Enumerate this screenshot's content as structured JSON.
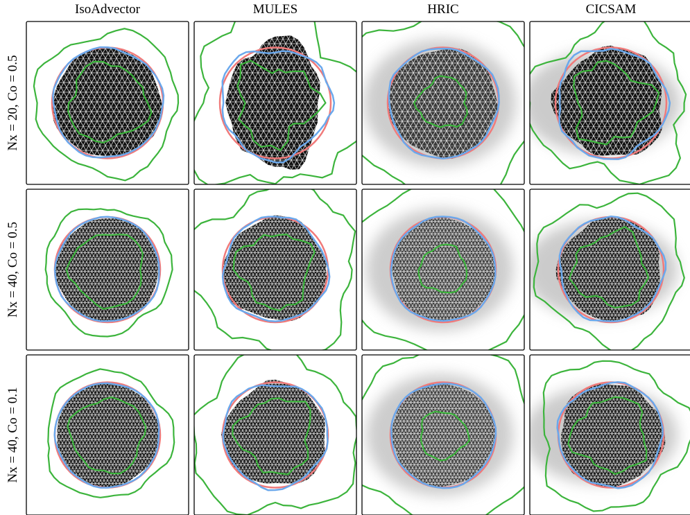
{
  "columns": [
    "IsoAdvector",
    "MULES",
    "HRIC",
    "CICSAM"
  ],
  "rows": [
    "Nx = 20, Co = 0.5",
    "Nx = 40, Co = 0.5",
    "Nx = 40, Co = 0.1"
  ]
}
